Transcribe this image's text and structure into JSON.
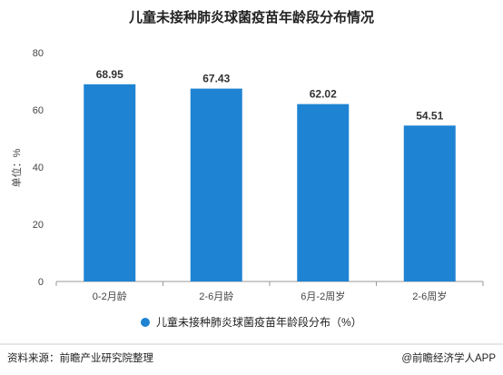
{
  "chart_data": {
    "type": "bar",
    "title": "儿童未接种肺炎球菌疫苗年龄段分布情况",
    "ylabel": "单位：%",
    "xlabel": "",
    "categories": [
      "0-2月龄",
      "2-6月龄",
      "6月-2周岁",
      "2-6周岁"
    ],
    "series": [
      {
        "name": "儿童未接种肺炎球菌疫苗年龄段分布（%）",
        "values": [
          68.95,
          67.43,
          62.02,
          54.51
        ]
      }
    ],
    "ylim": [
      0,
      80
    ],
    "yticks": [
      0,
      20,
      40,
      60,
      80
    ],
    "grid": false,
    "legend_position": "bottom",
    "colors": {
      "bar": "#1e83d2",
      "axis": "#999999"
    }
  },
  "footer": {
    "source": "资料来源：前瞻产业研究院整理",
    "brand": "@前瞻经济学人APP"
  }
}
